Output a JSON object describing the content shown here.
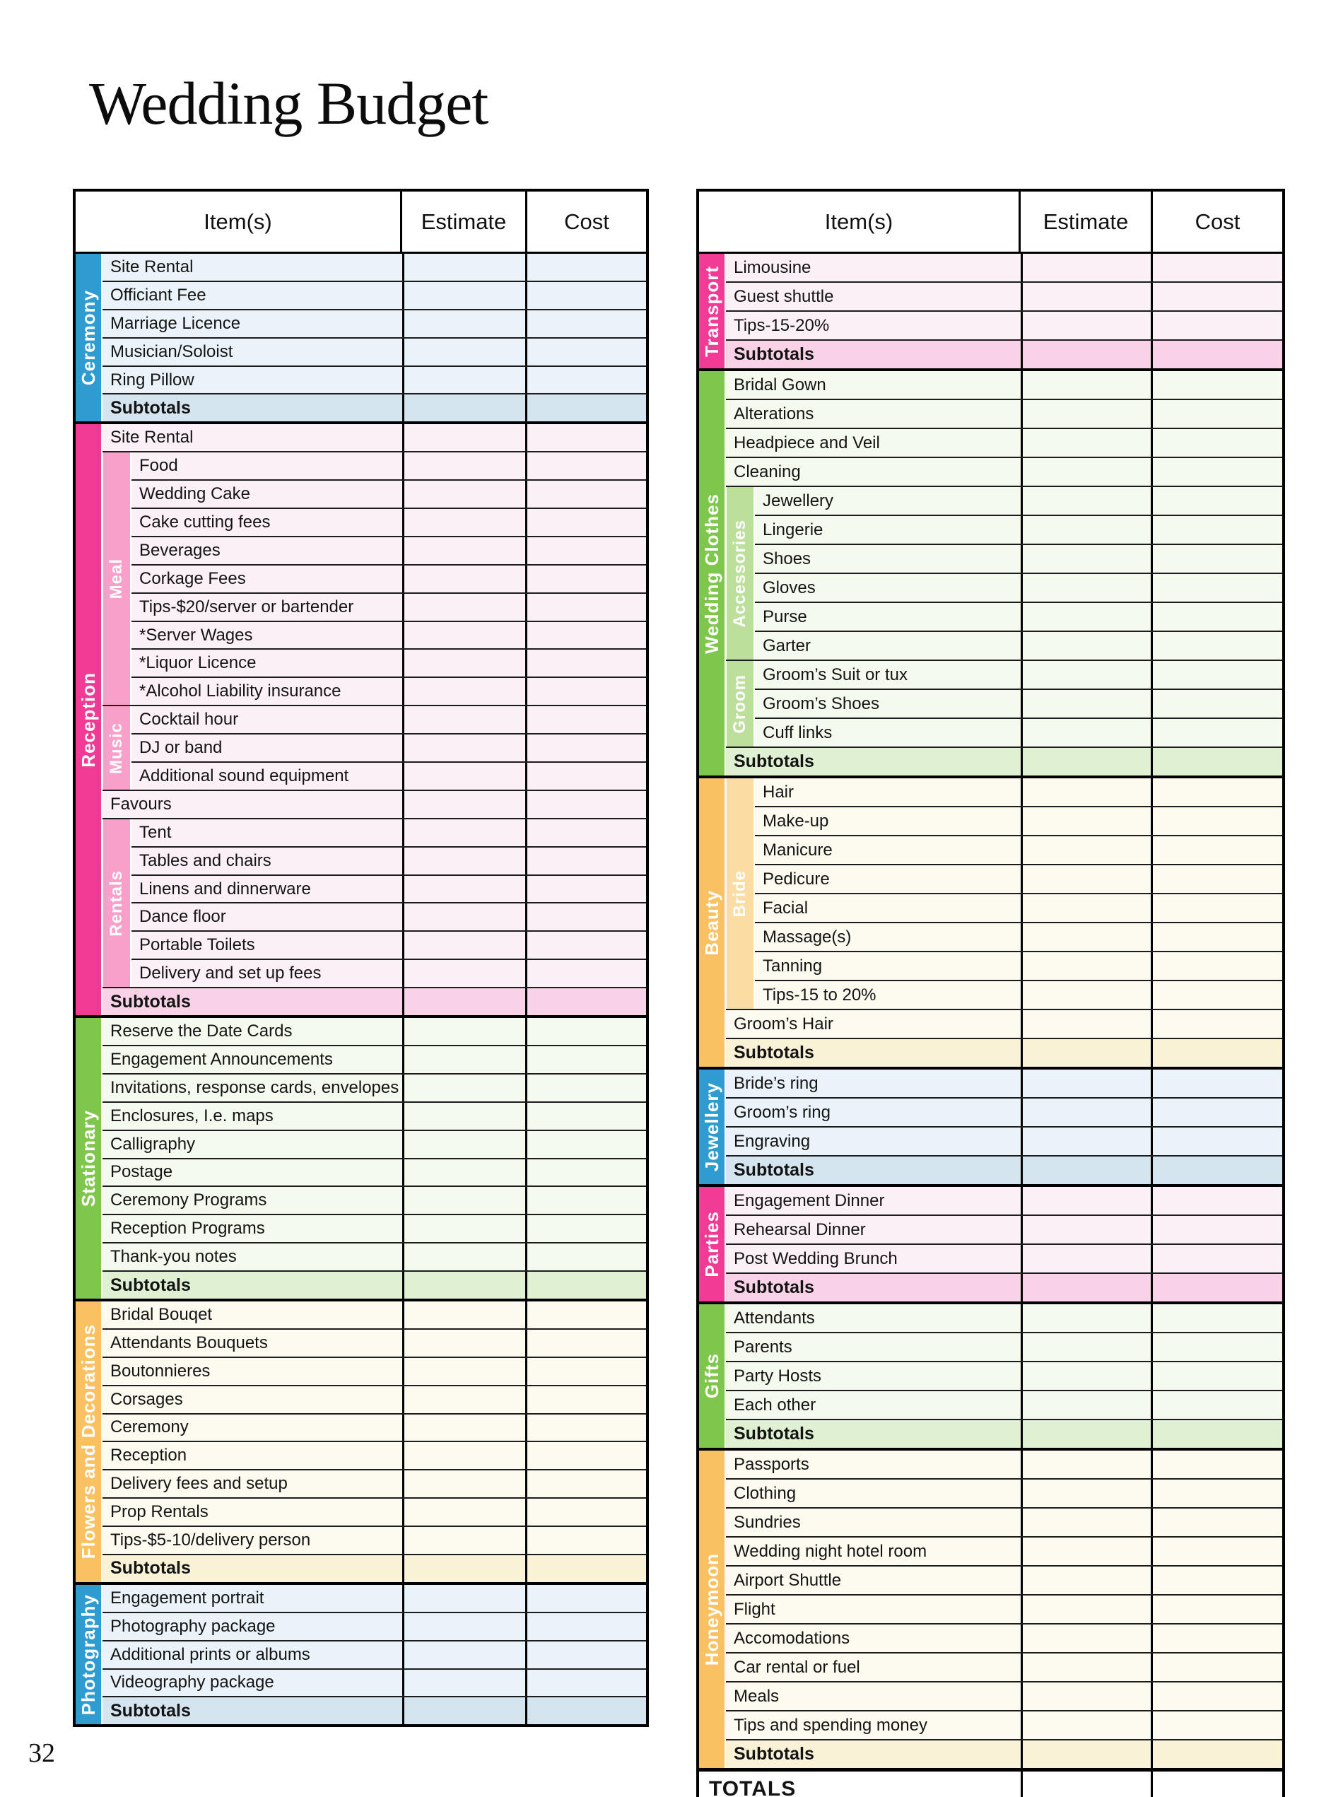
{
  "page": {
    "title": "Wedding Budget",
    "page_number": "32"
  },
  "columns": {
    "item": "Item(s)",
    "estimate": "Estimate",
    "cost": "Cost"
  },
  "families": {
    "blue": {
      "strip": "#2e9bd1",
      "band": "#9ccde6",
      "row": "#eaf3f9",
      "subtotal": "#d5e5f0"
    },
    "pink": {
      "strip": "#f03a93",
      "band": "#f9a0ca",
      "row": "#fcf0f7",
      "subtotal": "#f9d2e7"
    },
    "green": {
      "strip": "#7fc74c",
      "band": "#bce09c",
      "row": "#f4faee",
      "subtotal": "#dff1d2"
    },
    "orange": {
      "strip": "#f9c161",
      "band": "#fbdca2",
      "row": "#fdfbf0",
      "subtotal": "#faf2d6"
    }
  },
  "tables": [
    {
      "name": "left",
      "sections": [
        {
          "label": "Ceremony",
          "family": "blue",
          "groups": [
            {
              "type": "items",
              "rows": [
                "Site Rental",
                "Officiant Fee",
                "Marriage Licence",
                "Musician/Soloist",
                "Ring Pillow"
              ]
            },
            {
              "type": "subtotal",
              "label": "Subtotals"
            }
          ]
        },
        {
          "label": "Reception",
          "family": "pink",
          "groups": [
            {
              "type": "items",
              "rows": [
                "Site Rental"
              ]
            },
            {
              "type": "sub",
              "label": "Meal",
              "rows": [
                "Food",
                "Wedding Cake",
                "Cake cutting fees",
                "Beverages",
                "Corkage Fees",
                "Tips-$20/server or bartender",
                "*Server Wages",
                "*Liquor Licence",
                "*Alcohol Liability insurance"
              ]
            },
            {
              "type": "sub",
              "label": "Music",
              "rows": [
                "Cocktail hour",
                "DJ or band",
                "Additional sound equipment"
              ]
            },
            {
              "type": "items",
              "rows": [
                "Favours"
              ]
            },
            {
              "type": "sub",
              "label": "Rentals",
              "rows": [
                "Tent",
                "Tables and chairs",
                "Linens and dinnerware",
                "Dance floor",
                "Portable Toilets",
                "Delivery and set up fees"
              ]
            },
            {
              "type": "subtotal",
              "label": "Subtotals"
            }
          ]
        },
        {
          "label": "Stationary",
          "family": "green",
          "groups": [
            {
              "type": "items",
              "rows": [
                "Reserve the Date Cards",
                "Engagement Announcements",
                "Invitations, response cards, envelopes",
                "Enclosures, I.e. maps",
                "Calligraphy",
                "Postage",
                "Ceremony Programs",
                "Reception Programs",
                "Thank-you notes"
              ]
            },
            {
              "type": "subtotal",
              "label": "Subtotals"
            }
          ]
        },
        {
          "label": "Flowers and Decorations",
          "family": "orange",
          "groups": [
            {
              "type": "items",
              "rows": [
                "Bridal Bouqet",
                "Attendants Bouquets",
                "Boutonnieres",
                "Corsages",
                "Ceremony",
                "Reception",
                "Delivery fees and setup",
                "Prop Rentals",
                "Tips-$5-10/delivery person"
              ]
            },
            {
              "type": "subtotal",
              "label": "Subtotals"
            }
          ]
        },
        {
          "label": "Photography",
          "family": "blue",
          "groups": [
            {
              "type": "items",
              "rows": [
                "Engagement portrait",
                "Photography package",
                "Additional prints or albums",
                "Videography package"
              ]
            },
            {
              "type": "subtotal",
              "label": "Subtotals"
            }
          ]
        }
      ]
    },
    {
      "name": "right",
      "totals_label": "TOTALS",
      "sections": [
        {
          "label": "Transport",
          "family": "pink",
          "groups": [
            {
              "type": "items",
              "rows": [
                "Limousine",
                "Guest shuttle",
                "Tips-15-20%"
              ]
            },
            {
              "type": "subtotal",
              "label": "Subtotals"
            }
          ]
        },
        {
          "label": "Wedding Clothes",
          "family": "green",
          "groups": [
            {
              "type": "items",
              "rows": [
                "Bridal Gown",
                "Alterations",
                "Headpiece and Veil",
                "Cleaning"
              ]
            },
            {
              "type": "sub",
              "label": "Accessories",
              "rows": [
                "Jewellery",
                "Lingerie",
                "Shoes",
                "Gloves",
                "Purse",
                "Garter"
              ]
            },
            {
              "type": "sub",
              "label": "Groom",
              "rows": [
                "Groom’s Suit or tux",
                "Groom’s Shoes",
                "Cuff links"
              ]
            },
            {
              "type": "subtotal",
              "label": "Subtotals"
            }
          ]
        },
        {
          "label": "Beauty",
          "family": "orange",
          "groups": [
            {
              "type": "sub",
              "label": "Bride",
              "rows": [
                "Hair",
                "Make-up",
                "Manicure",
                "Pedicure",
                "Facial",
                "Massage(s)",
                "Tanning",
                "Tips-15 to 20%"
              ]
            },
            {
              "type": "items",
              "rows": [
                "Groom’s Hair"
              ]
            },
            {
              "type": "subtotal",
              "label": "Subtotals"
            }
          ]
        },
        {
          "label": "Jewellery",
          "family": "blue",
          "groups": [
            {
              "type": "items",
              "rows": [
                "Bride’s ring",
                "Groom’s ring",
                "Engraving"
              ]
            },
            {
              "type": "subtotal",
              "label": "Subtotals"
            }
          ]
        },
        {
          "label": "Parties",
          "family": "pink",
          "groups": [
            {
              "type": "items",
              "rows": [
                "Engagement Dinner",
                "Rehearsal Dinner",
                "Post Wedding Brunch"
              ]
            },
            {
              "type": "subtotal",
              "label": "Subtotals"
            }
          ]
        },
        {
          "label": "Gifts",
          "family": "green",
          "groups": [
            {
              "type": "items",
              "rows": [
                "Attendants",
                "Parents",
                "Party Hosts",
                "Each other"
              ]
            },
            {
              "type": "subtotal",
              "label": "Subtotals"
            }
          ]
        },
        {
          "label": "Honeymoon",
          "family": "orange",
          "groups": [
            {
              "type": "items",
              "rows": [
                "Passports",
                "Clothing",
                "Sundries",
                "Wedding night hotel room",
                "Airport Shuttle",
                "Flight",
                "Accomodations",
                "Car rental or fuel",
                "Meals",
                "Tips and spending money"
              ]
            },
            {
              "type": "subtotal",
              "label": "Subtotals"
            }
          ]
        }
      ]
    }
  ]
}
